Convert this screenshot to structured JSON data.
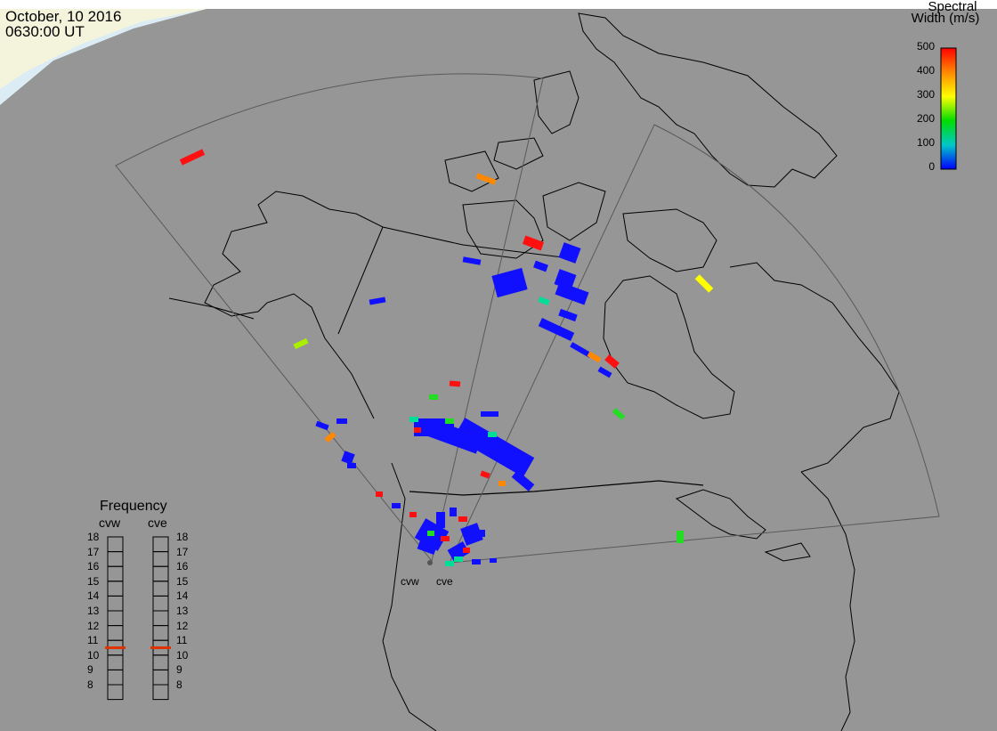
{
  "header": {
    "date": "October, 10 2016",
    "time": "0630:00 UT"
  },
  "colorbar": {
    "title_line1": "Spectral",
    "title_line2": "Width (m/s)",
    "ticks": [
      "500",
      "400",
      "300",
      "200",
      "100",
      "0"
    ],
    "min": 0,
    "max": 500
  },
  "frequency": {
    "title": "Frequency",
    "left_label": "cvw",
    "right_label": "cve",
    "ticks": [
      "18",
      "17",
      "16",
      "15",
      "14",
      "13",
      "12",
      "11",
      "10",
      "9",
      "8"
    ],
    "left_value": 10.5,
    "right_value": 10.5,
    "marker_color": "#dd3300"
  },
  "sites": {
    "cvw": "cvw",
    "cve": "cve"
  },
  "colors": {
    "ocean": "#969696",
    "coast": "#000000",
    "fov": "#5a5a5a",
    "daylight": "#f4f4dc",
    "daylight_edge": "#dcecf4"
  }
}
